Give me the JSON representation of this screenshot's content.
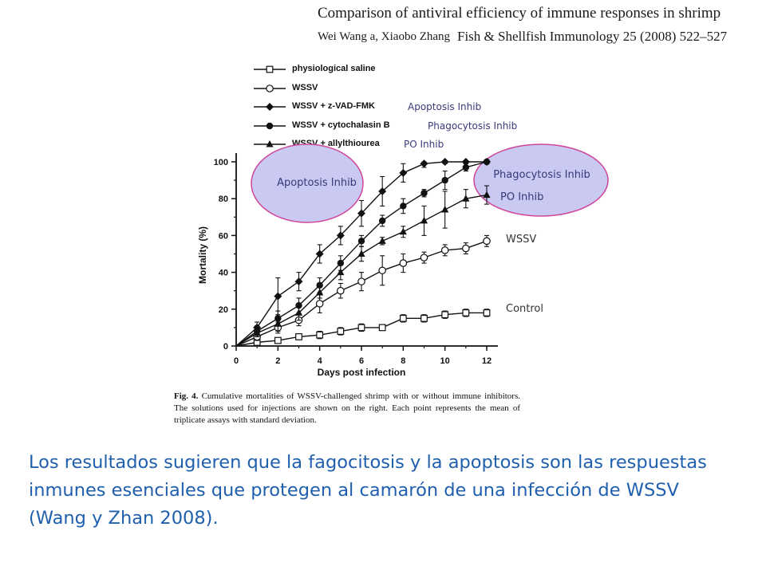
{
  "header": {
    "title": "Comparison of antiviral efficiency of immune responses in shrimp",
    "authors": "Wei Wang a, Xiaobo Zhang",
    "journal": "Fish & Shellfish Immunology 25 (2008) 522–527"
  },
  "legend_notes": {
    "apoptosis": "Apoptosis Inhib",
    "phagocytosis": "Phagocytosis Inhib",
    "po": "PO Inhib"
  },
  "annotations": {
    "apoptosis_bubble": "Apoptosis Inhib",
    "phagocytosis_bubble": "Phagocytosis Inhib",
    "po_label": "PO Inhib",
    "wssv_label": "WSSV",
    "control_label": "Control",
    "bubble_fill": "#c9c9f2",
    "bubble_stroke": "#d0459a"
  },
  "caption": {
    "fig_label": "Fig. 4.",
    "text": "Cumulative mortalities of WSSV-challenged shrimp with or without immune inhibitors. The solutions used for injections are shown on the right. Each point represents the mean of triplicate assays with standard deviation."
  },
  "summary": "Los resultados sugieren que la fagocitosis y la apoptosis son las respuestas inmunes esenciales que protegen al camarón de una infección de WSSV (Wang y Zhan 2008).",
  "chart_data": {
    "type": "line",
    "xlabel": "Days post infection",
    "ylabel": "Mortality (%)",
    "xlim": [
      0,
      12
    ],
    "ylim": [
      0,
      100
    ],
    "xticks": [
      0,
      2,
      4,
      6,
      8,
      10,
      12
    ],
    "yticks": [
      0,
      20,
      40,
      60,
      80,
      100
    ],
    "grid": false,
    "legend_position": "top",
    "x": [
      0,
      1,
      2,
      3,
      4,
      5,
      6,
      7,
      8,
      9,
      10,
      11,
      12
    ],
    "series": [
      {
        "name": "physiological saline",
        "marker": "open-square",
        "values": [
          0,
          2,
          3,
          5,
          6,
          8,
          10,
          10,
          15,
          15,
          17,
          18,
          18
        ],
        "errors": [
          0,
          1,
          1,
          1,
          2,
          2,
          2,
          1,
          2,
          2,
          2,
          2,
          2
        ]
      },
      {
        "name": "WSSV",
        "marker": "open-circle",
        "values": [
          0,
          5,
          10,
          14,
          23,
          30,
          35,
          41,
          45,
          48,
          52,
          53,
          57
        ],
        "errors": [
          0,
          2,
          3,
          3,
          5,
          4,
          5,
          8,
          5,
          3,
          3,
          3,
          3
        ]
      },
      {
        "name": "WSSV + z-VAD-FMK",
        "marker": "filled-diamond",
        "values": [
          0,
          10,
          27,
          35,
          50,
          60,
          72,
          84,
          94,
          99,
          100,
          100,
          100
        ],
        "errors": [
          0,
          3,
          10,
          5,
          5,
          5,
          7,
          8,
          5,
          2,
          1,
          1,
          1
        ]
      },
      {
        "name": "WSSV + cytochalasin B",
        "marker": "filled-circle",
        "values": [
          0,
          8,
          15,
          22,
          33,
          45,
          57,
          68,
          76,
          83,
          90,
          97,
          100
        ],
        "errors": [
          0,
          3,
          4,
          4,
          4,
          4,
          3,
          3,
          4,
          2,
          5,
          2,
          1
        ]
      },
      {
        "name": "WSSV + allylthiourea",
        "marker": "filled-triangle",
        "values": [
          0,
          7,
          12,
          18,
          29,
          40,
          50,
          57,
          62,
          68,
          74,
          80,
          82
        ],
        "errors": [
          0,
          2,
          4,
          4,
          3,
          4,
          4,
          2,
          3,
          8,
          10,
          5,
          5
        ]
      }
    ]
  }
}
